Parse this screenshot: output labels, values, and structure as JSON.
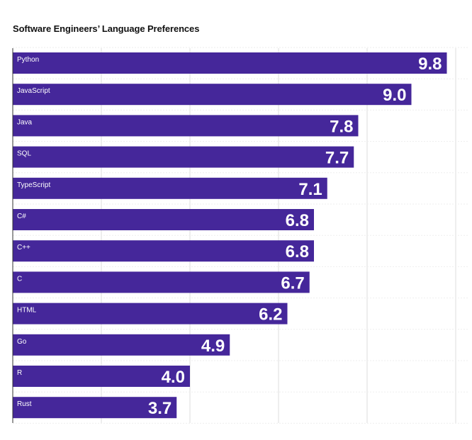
{
  "title": "Software Engineers’ Language Preferences",
  "colors": {
    "bar": "#45279a",
    "grid": "#dedede",
    "axis": "#333333",
    "text_on_bar": "#ffffff"
  },
  "chart_data": {
    "type": "bar",
    "orientation": "horizontal",
    "title": "Software Engineers’ Language Preferences",
    "categories": [
      "Python",
      "JavaScript",
      "Java",
      "SQL",
      "TypeScript",
      "C#",
      "C++",
      "C",
      "HTML",
      "Go",
      "R",
      "Rust"
    ],
    "values": [
      9.8,
      9.0,
      7.8,
      7.7,
      7.1,
      6.8,
      6.8,
      6.7,
      6.2,
      4.9,
      4.0,
      3.7
    ],
    "value_labels": [
      "9.8",
      "9.0",
      "7.8",
      "7.7",
      "7.1",
      "6.8",
      "6.8",
      "6.7",
      "6.2",
      "4.9",
      "4.0",
      "3.7"
    ],
    "xlim": [
      0,
      10
    ],
    "xlabel": "",
    "ylabel": "",
    "grid": true,
    "legend": "none"
  }
}
